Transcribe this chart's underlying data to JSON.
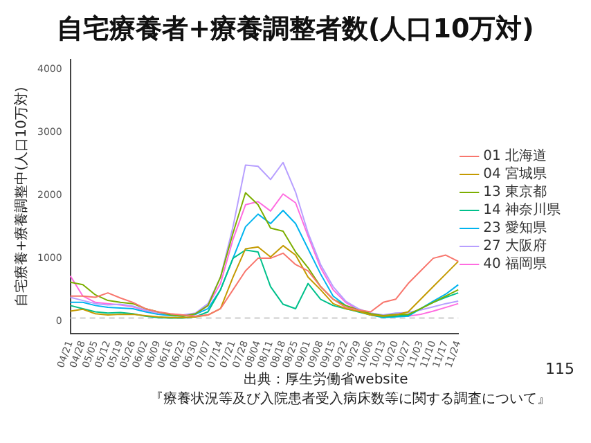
{
  "chart_data": {
    "type": "line",
    "title": "自宅療養者+療養調整者数(人口10万対)",
    "ylabel": "自宅療養+療養調整中(人口10万対)",
    "categories": [
      "04/21",
      "04/28",
      "05/05",
      "05/12",
      "05/19",
      "05/26",
      "06/02",
      "06/09",
      "06/16",
      "06/23",
      "06/30",
      "07/07",
      "07/14",
      "07/21",
      "07/28",
      "08/04",
      "08/11",
      "08/18",
      "08/25",
      "09/01",
      "09/08",
      "09/15",
      "09/22",
      "09/29",
      "10/06",
      "10/13",
      "10/20",
      "10/27",
      "11/03",
      "11/10",
      "11/17",
      "11/24"
    ],
    "series": [
      {
        "name": "01 北海道",
        "color": "#f8766d",
        "values": [
          400,
          400,
          380,
          450,
          370,
          300,
          200,
          150,
          120,
          100,
          80,
          100,
          200,
          500,
          800,
          1000,
          1000,
          1080,
          900,
          800,
          550,
          350,
          220,
          180,
          150,
          300,
          350,
          600,
          800,
          1000,
          1050,
          950
        ]
      },
      {
        "name": "04 宮城県",
        "color": "#c49a00",
        "values": [
          160,
          190,
          120,
          100,
          110,
          110,
          90,
          70,
          60,
          60,
          70,
          100,
          200,
          700,
          1150,
          1180,
          1020,
          1200,
          1050,
          700,
          500,
          280,
          200,
          160,
          100,
          80,
          100,
          150,
          350,
          550,
          750,
          950
        ]
      },
      {
        "name": "13 東京都",
        "color": "#7cae00",
        "values": [
          620,
          580,
          420,
          330,
          300,
          280,
          200,
          150,
          100,
          80,
          120,
          250,
          700,
          1400,
          2040,
          1850,
          1480,
          1430,
          1100,
          850,
          550,
          350,
          250,
          180,
          120,
          90,
          110,
          110,
          200,
          300,
          400,
          500
        ]
      },
      {
        "name": "14 神奈川県",
        "color": "#00c08b",
        "values": [
          250,
          200,
          150,
          130,
          140,
          120,
          80,
          60,
          50,
          50,
          70,
          150,
          500,
          1000,
          1130,
          1100,
          550,
          270,
          200,
          600,
          350,
          250,
          200,
          150,
          100,
          70,
          80,
          100,
          200,
          300,
          380,
          450
        ]
      },
      {
        "name": "23 愛知県",
        "color": "#00b4ef",
        "values": [
          300,
          300,
          250,
          220,
          210,
          200,
          150,
          110,
          90,
          80,
          110,
          200,
          500,
          1000,
          1500,
          1700,
          1550,
          1760,
          1550,
          1150,
          750,
          400,
          250,
          180,
          100,
          60,
          70,
          80,
          200,
          320,
          430,
          580
        ]
      },
      {
        "name": "27 大阪府",
        "color": "#b79fff",
        "values": [
          380,
          330,
          280,
          260,
          270,
          240,
          180,
          130,
          110,
          100,
          130,
          280,
          700,
          1500,
          2480,
          2460,
          2250,
          2520,
          2050,
          1400,
          900,
          550,
          320,
          200,
          130,
          100,
          130,
          140,
          180,
          230,
          280,
          320
        ]
      },
      {
        "name": "40 福岡県",
        "color": "#ff6ce0",
        "values": [
          720,
          400,
          300,
          280,
          260,
          230,
          170,
          130,
          100,
          90,
          110,
          250,
          600,
          1300,
          1850,
          1900,
          1750,
          2020,
          1880,
          1350,
          850,
          500,
          300,
          180,
          110,
          80,
          90,
          80,
          110,
          160,
          220,
          280
        ]
      }
    ],
    "ylim": [
      -200,
      4150
    ],
    "yticks": [
      0,
      1000,
      2000,
      3000,
      4000
    ],
    "grid": false,
    "legend": "right",
    "marker": "none",
    "line_style": "solid",
    "ref_lines": [
      {
        "axis": "y",
        "value": 50,
        "color": "#cccccc",
        "line_style": "dashed"
      }
    ],
    "annotations": [
      "出典：厚生労働省website",
      "『療養状況等及び入院患者受入病床数等に関する調査について』",
      "115"
    ]
  }
}
